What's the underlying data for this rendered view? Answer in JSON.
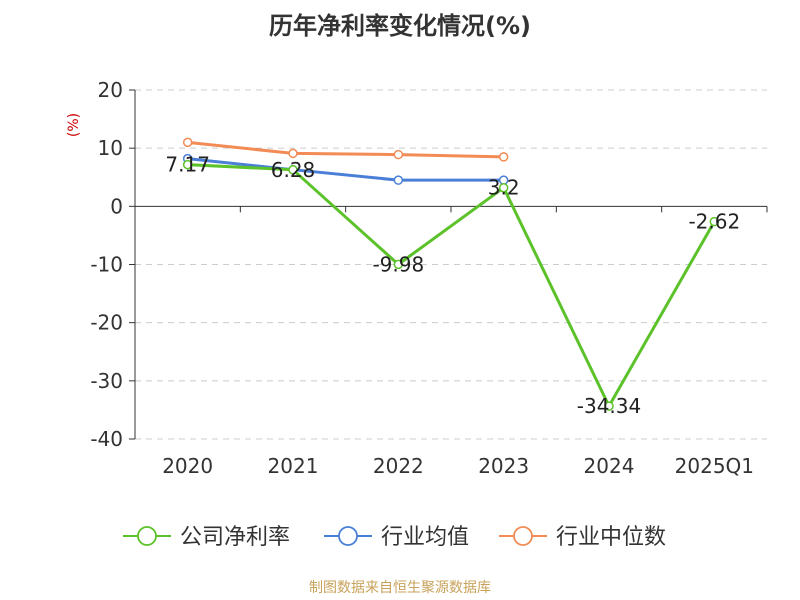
{
  "title": "历年净利率变化情况(%)",
  "source": "制图数据来自恒生聚源数据库",
  "chart_data": {
    "type": "line",
    "title": "历年净利率变化情况(%)",
    "ylabel": "(%)",
    "categories": [
      "2020",
      "2021",
      "2022",
      "2023",
      "2024",
      "2025Q1"
    ],
    "ylim": [
      -40,
      20
    ],
    "yticks": [
      20,
      10,
      0,
      -10,
      -20,
      -30,
      -40
    ],
    "grid": true,
    "legend_position": "bottom",
    "series": [
      {
        "name": "公司净利率",
        "color": "#5cc22a",
        "values": [
          7.17,
          6.28,
          -9.98,
          3.2,
          -34.34,
          -2.62
        ],
        "labels": [
          "7.17",
          "6.28",
          "-9.98",
          "3.2",
          "-34.34",
          "-2.62"
        ]
      },
      {
        "name": "行业均值",
        "color": "#4a7fd8",
        "values": [
          8.2,
          6.3,
          4.5,
          4.5,
          null,
          null
        ]
      },
      {
        "name": "行业中位数",
        "color": "#f28b55",
        "values": [
          11.0,
          9.1,
          8.9,
          8.5,
          null,
          null
        ]
      }
    ]
  }
}
